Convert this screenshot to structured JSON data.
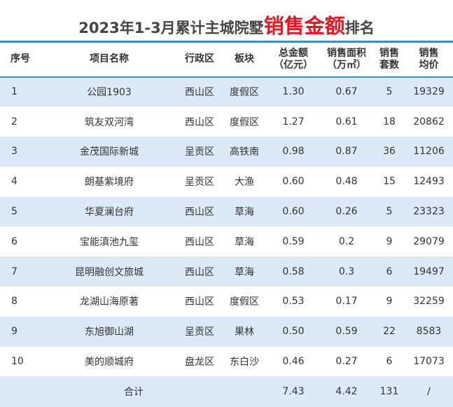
{
  "title": {
    "prefix": "2023年1-3月累计主城院墅",
    "highlight": "销售金额",
    "suffix": "排名"
  },
  "headers": {
    "rank": [
      "序号"
    ],
    "project": [
      "项目名称"
    ],
    "district": [
      "行政区"
    ],
    "block": [
      "板块"
    ],
    "amount": [
      "总金额",
      "（亿元）"
    ],
    "area": [
      "销售面积",
      "（万㎡）"
    ],
    "units": [
      "销售",
      "套数"
    ],
    "avg_price": [
      "销售",
      "均价"
    ]
  },
  "rows": [
    {
      "rank": "1",
      "project": "公园1903",
      "district": "西山区",
      "block": "度假区",
      "amount": "1.30",
      "area": "0.67",
      "units": "5",
      "avg_price": "19329"
    },
    {
      "rank": "2",
      "project": "筑友双河湾",
      "district": "西山区",
      "block": "度假区",
      "amount": "1.27",
      "area": "0.61",
      "units": "18",
      "avg_price": "20862"
    },
    {
      "rank": "3",
      "project": "金茂国际新城",
      "district": "呈贡区",
      "block": "高铁南",
      "amount": "0.98",
      "area": "0.87",
      "units": "36",
      "avg_price": "11206"
    },
    {
      "rank": "4",
      "project": "朗基紫境府",
      "district": "呈贡区",
      "block": "大渔",
      "amount": "0.60",
      "area": "0.48",
      "units": "15",
      "avg_price": "12493"
    },
    {
      "rank": "5",
      "project": "华夏澜台府",
      "district": "西山区",
      "block": "草海",
      "amount": "0.60",
      "area": "0.26",
      "units": "5",
      "avg_price": "23323"
    },
    {
      "rank": "6",
      "project": "宝能滇池九玺",
      "district": "西山区",
      "block": "草海",
      "amount": "0.59",
      "area": "0.2",
      "units": "9",
      "avg_price": "29079"
    },
    {
      "rank": "7",
      "project": "昆明融创文旅城",
      "district": "西山区",
      "block": "草海",
      "amount": "0.58",
      "area": "0.3",
      "units": "6",
      "avg_price": "19497"
    },
    {
      "rank": "8",
      "project": "龙湖山海原著",
      "district": "西山区",
      "block": "度假区",
      "amount": "0.53",
      "area": "0.17",
      "units": "9",
      "avg_price": "32259"
    },
    {
      "rank": "9",
      "project": "东旭御山湖",
      "district": "呈贡区",
      "block": "果林",
      "amount": "0.50",
      "area": "0.59",
      "units": "22",
      "avg_price": "8583"
    },
    {
      "rank": "10",
      "project": "美的顺城府",
      "district": "盘龙区",
      "block": "东白沙",
      "amount": "0.46",
      "area": "0.27",
      "units": "6",
      "avg_price": "17073"
    }
  ],
  "total": {
    "label": "合计",
    "amount": "7.43",
    "area": "4.42",
    "units": "131",
    "avg_price": "/"
  },
  "colors": {
    "header_rule": "#3d8fc5",
    "row_tint": "#dce9f7",
    "title_highlight": "#e8141f",
    "title_text": "#444444"
  }
}
